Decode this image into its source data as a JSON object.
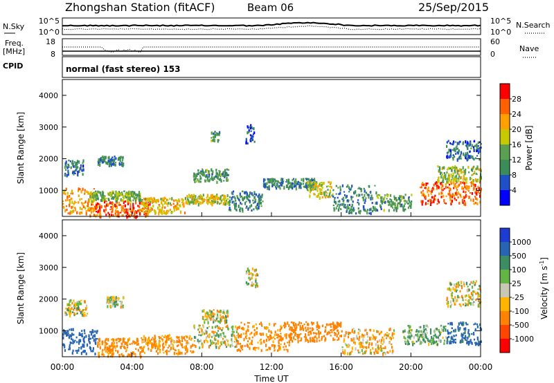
{
  "header": {
    "title": "Zhongshan Station (fitACF)",
    "beam": "Beam 06",
    "date": "25/Sep/2015"
  },
  "status_panels": {
    "nsky_label": "N.Sky",
    "nsky_left_ticks": [
      "10^5",
      "10^0"
    ],
    "nsky_right_ticks": [
      "10^5",
      "10^0"
    ],
    "nsearch_label": "N.Search",
    "freq_label_line1": "Freq.",
    "freq_label_line2": "[MHz]",
    "freq_left_ticks": [
      "18",
      "8"
    ],
    "nave_right_ticks": [
      "60",
      "0"
    ],
    "nave_label": "Nave",
    "cpid_label": "CPID",
    "cpid_text": "normal (fast stereo) 153"
  },
  "colorbars": {
    "power": {
      "label": "Power [dB]",
      "ticks": [
        "28",
        "24",
        "20",
        "16",
        "12",
        "8",
        "4"
      ],
      "colors": [
        "#0000ff",
        "#2050c8",
        "#3c8c5a",
        "#5aa050",
        "#c8c800",
        "#ffa000",
        "#ff6000",
        "#ff0000"
      ]
    },
    "velocity": {
      "label_main": "Velocity [m s",
      "label_sup": "-1",
      "label_close": "]",
      "ticks": [
        "1000",
        "500",
        "100",
        "25",
        "-25",
        "-100",
        "-500",
        "-1000"
      ],
      "colors": [
        "#1e3cd2",
        "#2864b4",
        "#3c8c64",
        "#64b446",
        "#c8c8b4",
        "#ffb400",
        "#ff8200",
        "#ff4600",
        "#ff0000"
      ]
    }
  },
  "chart_data": [
    {
      "type": "heatmap",
      "panel": "power",
      "title": "",
      "xlabel": "",
      "ylabel": "Slant Range [km]",
      "x_range": [
        "00:00",
        "24:00"
      ],
      "ylim": [
        180,
        4500
      ],
      "y_ticks": [
        1000,
        2000,
        3000,
        4000
      ],
      "value_unit": "dB",
      "value_range": [
        0,
        30
      ],
      "regions": [
        {
          "t": [
            0.0,
            1.8
          ],
          "range_km": [
            300,
            1100
          ],
          "value": 22
        },
        {
          "t": [
            0.1,
            1.2
          ],
          "range_km": [
            1500,
            2000
          ],
          "value": 8
        },
        {
          "t": [
            1.5,
            5.0
          ],
          "range_km": [
            200,
            700
          ],
          "value": 26
        },
        {
          "t": [
            1.5,
            4.5
          ],
          "range_km": [
            700,
            1000
          ],
          "value": 14
        },
        {
          "t": [
            2.0,
            3.5
          ],
          "range_km": [
            1800,
            2100
          ],
          "value": 10
        },
        {
          "t": [
            4.5,
            7.0
          ],
          "range_km": [
            300,
            800
          ],
          "value": 20
        },
        {
          "t": [
            7.0,
            9.5
          ],
          "range_km": [
            600,
            900
          ],
          "value": 18
        },
        {
          "t": [
            7.5,
            9.5
          ],
          "range_km": [
            1300,
            1700
          ],
          "value": 12
        },
        {
          "t": [
            8.5,
            9.0
          ],
          "range_km": [
            2600,
            2900
          ],
          "value": 12
        },
        {
          "t": [
            9.5,
            11.5
          ],
          "range_km": [
            400,
            1000
          ],
          "value": 10
        },
        {
          "t": [
            10.5,
            11.0
          ],
          "range_km": [
            2500,
            3100
          ],
          "value": 6
        },
        {
          "t": [
            11.5,
            14.5
          ],
          "range_km": [
            1100,
            1400
          ],
          "value": 10
        },
        {
          "t": [
            14.0,
            15.5
          ],
          "range_km": [
            800,
            1300
          ],
          "value": 18
        },
        {
          "t": [
            15.5,
            18.0
          ],
          "range_km": [
            300,
            1200
          ],
          "value": 10
        },
        {
          "t": [
            18.0,
            20.0
          ],
          "range_km": [
            400,
            900
          ],
          "value": 12
        },
        {
          "t": [
            20.5,
            24.0
          ],
          "range_km": [
            600,
            1300
          ],
          "value": 26
        },
        {
          "t": [
            21.5,
            24.0
          ],
          "range_km": [
            1300,
            1800
          ],
          "value": 16
        },
        {
          "t": [
            22.0,
            24.0
          ],
          "range_km": [
            2000,
            2600
          ],
          "value": 8
        }
      ]
    },
    {
      "type": "heatmap",
      "panel": "velocity",
      "title": "",
      "xlabel": "Time UT",
      "ylabel": "Slant Range [km]",
      "x_range": [
        "00:00",
        "24:00"
      ],
      "x_ticks": [
        "00:00",
        "04:00",
        "08:00",
        "12:00",
        "16:00",
        "20:00",
        "00:00"
      ],
      "ylim": [
        180,
        4500
      ],
      "y_ticks": [
        1000,
        2000,
        3000,
        4000
      ],
      "value_unit": "m s^-1",
      "value_range": [
        -1000,
        1000
      ],
      "regions": [
        {
          "t": [
            0.0,
            2.0
          ],
          "range_km": [
            300,
            1100
          ],
          "value": 700
        },
        {
          "t": [
            0.1,
            1.5
          ],
          "range_km": [
            1500,
            2000
          ],
          "value": 0
        },
        {
          "t": [
            2.0,
            4.5
          ],
          "range_km": [
            200,
            800
          ],
          "value": -200
        },
        {
          "t": [
            2.5,
            3.5
          ],
          "range_km": [
            1800,
            2100
          ],
          "value": 0
        },
        {
          "t": [
            4.5,
            7.5
          ],
          "range_km": [
            300,
            900
          ],
          "value": -150
        },
        {
          "t": [
            7.5,
            10.0
          ],
          "range_km": [
            500,
            1200
          ],
          "value": 0
        },
        {
          "t": [
            8.0,
            9.5
          ],
          "range_km": [
            1300,
            1700
          ],
          "value": 0
        },
        {
          "t": [
            10.0,
            13.0
          ],
          "range_km": [
            400,
            1300
          ],
          "value": -200
        },
        {
          "t": [
            10.5,
            11.2
          ],
          "range_km": [
            2400,
            3000
          ],
          "value": 0
        },
        {
          "t": [
            13.0,
            16.0
          ],
          "range_km": [
            700,
            1300
          ],
          "value": -250
        },
        {
          "t": [
            16.0,
            19.0
          ],
          "range_km": [
            300,
            1100
          ],
          "value": -80
        },
        {
          "t": [
            19.5,
            22.0
          ],
          "range_km": [
            600,
            1200
          ],
          "value": 100
        },
        {
          "t": [
            22.0,
            24.0
          ],
          "range_km": [
            600,
            1300
          ],
          "value": 600
        },
        {
          "t": [
            22.0,
            24.0
          ],
          "range_km": [
            1800,
            2600
          ],
          "value": 0
        }
      ]
    }
  ]
}
